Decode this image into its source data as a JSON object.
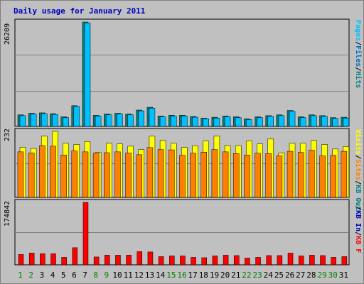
{
  "title": "Daily usage for January 2011",
  "colors": {
    "background": "#c0c0c0",
    "pages": "#00c0ff",
    "files": "#0070c0",
    "hits": "#008080",
    "visits": "#ffff00",
    "sites": "#ff8000",
    "kb_out": "#008080",
    "kb_in": "#0000c0",
    "kb_f": "#ff0000",
    "day_weekday": "#000000",
    "day_weekend": "#008000"
  },
  "legend_top": [
    {
      "text": "Pages",
      "color": "#00c0ff"
    },
    {
      "text": "/",
      "color": "#000000"
    },
    {
      "text": "Files",
      "color": "#0070c0"
    },
    {
      "text": "/",
      "color": "#000000"
    },
    {
      "text": "Hits",
      "color": "#008080"
    }
  ],
  "legend_mid": [
    {
      "text": "Visits",
      "color": "#ffff00"
    },
    {
      "text": "/",
      "color": "#000000"
    },
    {
      "text": "Sites",
      "color": "#ff8000"
    },
    {
      "text": "/",
      "color": "#000000"
    },
    {
      "text": "KB Out",
      "color": "#008080"
    }
  ],
  "legend_bot": [
    {
      "text": "/",
      "color": "#000000"
    },
    {
      "text": "KB In",
      "color": "#0000c0"
    },
    {
      "text": "/",
      "color": "#000000"
    },
    {
      "text": "KB F",
      "color": "#ff0000"
    }
  ],
  "chart_data": [
    {
      "type": "bar",
      "name": "hits-files-pages",
      "ymax_label": "26209",
      "ylim": [
        0,
        26209
      ],
      "categories": [
        "1",
        "2",
        "3",
        "4",
        "5",
        "6",
        "7",
        "8",
        "9",
        "10",
        "11",
        "12",
        "13",
        "14",
        "15",
        "16",
        "17",
        "18",
        "19",
        "20",
        "21",
        "22",
        "23",
        "24",
        "25",
        "26",
        "27",
        "28",
        "29",
        "30",
        "31"
      ],
      "weekend_days": [
        "1",
        "2",
        "8",
        "9",
        "15",
        "16",
        "22",
        "23",
        "29",
        "30"
      ],
      "series": [
        {
          "name": "Hits",
          "values": [
            2900,
            3300,
            3400,
            3200,
            2400,
            5200,
            26209,
            2800,
            3100,
            3300,
            3100,
            4100,
            4800,
            2600,
            2800,
            2800,
            2500,
            2100,
            2300,
            2600,
            2400,
            1900,
            2400,
            2700,
            2900,
            4000,
            2400,
            2900,
            2700,
            2200,
            2300
          ]
        },
        {
          "name": "Files",
          "values": [
            2700,
            3100,
            3200,
            3000,
            2200,
            5000,
            26000,
            2600,
            2900,
            3100,
            2900,
            3900,
            4600,
            2400,
            2600,
            2600,
            2300,
            1900,
            2100,
            2400,
            2200,
            1700,
            2200,
            2500,
            2700,
            3800,
            2200,
            2700,
            2500,
            2000,
            2100
          ]
        }
      ]
    },
    {
      "type": "bar",
      "name": "visits-sites",
      "ymax_label": "232",
      "ylim": [
        0,
        232
      ],
      "categories": [
        "1",
        "2",
        "3",
        "4",
        "5",
        "6",
        "7",
        "8",
        "9",
        "10",
        "11",
        "12",
        "13",
        "14",
        "15",
        "16",
        "17",
        "18",
        "19",
        "20",
        "21",
        "22",
        "23",
        "24",
        "25",
        "26",
        "27",
        "28",
        "29",
        "30",
        "31"
      ],
      "series": [
        {
          "name": "Visits",
          "values": [
            176,
            172,
            215,
            232,
            190,
            186,
            196,
            158,
            190,
            188,
            180,
            168,
            215,
            200,
            190,
            176,
            182,
            198,
            215,
            182,
            182,
            198,
            188,
            205,
            156,
            190,
            190,
            200,
            186,
            170,
            179
          ]
        },
        {
          "name": "Sites",
          "values": [
            160,
            156,
            182,
            180,
            149,
            163,
            160,
            155,
            157,
            160,
            156,
            150,
            175,
            168,
            167,
            148,
            155,
            159,
            168,
            160,
            154,
            149,
            155,
            154,
            146,
            162,
            158,
            166,
            146,
            148,
            162
          ]
        }
      ]
    },
    {
      "type": "bar",
      "name": "kbytes",
      "ymax_label": "174842",
      "ylim": [
        0,
        174842
      ],
      "categories": [
        "1",
        "2",
        "3",
        "4",
        "5",
        "6",
        "7",
        "8",
        "9",
        "10",
        "11",
        "12",
        "13",
        "14",
        "15",
        "16",
        "17",
        "18",
        "19",
        "20",
        "21",
        "22",
        "23",
        "24",
        "25",
        "26",
        "27",
        "28",
        "29",
        "30",
        "31"
      ],
      "series": [
        {
          "name": "KB F",
          "values": [
            29000,
            33000,
            31000,
            31000,
            21000,
            48000,
            174842,
            22000,
            27000,
            27000,
            27000,
            37000,
            36000,
            23000,
            25000,
            25000,
            21000,
            20000,
            25000,
            27000,
            26000,
            19000,
            21000,
            26000,
            26000,
            33000,
            25000,
            27000,
            26000,
            21000,
            23000
          ]
        }
      ]
    }
  ]
}
